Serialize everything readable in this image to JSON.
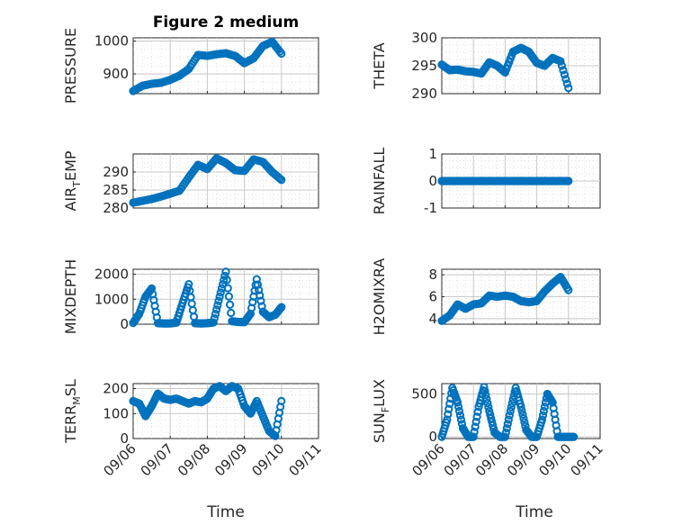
{
  "title": "Figure 2 medium",
  "xlabel": "Time",
  "colors": {
    "marker": "#0072BD",
    "axis": "#262626"
  },
  "x_ticks": [
    "09/06",
    "09/07",
    "09/08",
    "09/09",
    "09/10",
    "09/11"
  ],
  "chart_data": [
    {
      "type": "scatter",
      "ylabel": "PRESSURE",
      "ylabel_parts": [
        "PRESSURE"
      ],
      "ylim": [
        840,
        1010
      ],
      "yticks": [
        900,
        1000
      ],
      "ytick_labels": [
        "900",
        "1000"
      ],
      "xrange": [
        "09/06",
        "09/11"
      ],
      "x": [
        "09/06 00:00",
        "09/06 06:00",
        "09/06 12:00",
        "09/06 18:00",
        "09/07 00:00",
        "09/07 06:00",
        "09/07 12:00",
        "09/07 18:00",
        "09/08 00:00",
        "09/08 06:00",
        "09/08 12:00",
        "09/08 18:00",
        "09/09 00:00",
        "09/09 06:00",
        "09/09 12:00",
        "09/09 18:00",
        "09/10 00:00"
      ],
      "y": [
        848,
        864,
        870,
        873,
        882,
        895,
        915,
        958,
        955,
        960,
        963,
        955,
        933,
        948,
        985,
        998,
        962
      ]
    },
    {
      "type": "scatter",
      "ylabel": "THETA",
      "ylabel_parts": [
        "THETA"
      ],
      "ylim": [
        290,
        300
      ],
      "yticks": [
        290,
        295,
        300
      ],
      "ytick_labels": [
        "290",
        "295",
        "300"
      ],
      "xrange": [
        "09/06",
        "09/11"
      ],
      "x": [
        "09/06 00:00",
        "09/06 06:00",
        "09/06 12:00",
        "09/06 18:00",
        "09/07 00:00",
        "09/07 06:00",
        "09/07 12:00",
        "09/07 18:00",
        "09/08 00:00",
        "09/08 06:00",
        "09/08 12:00",
        "09/08 18:00",
        "09/09 00:00",
        "09/09 06:00",
        "09/09 12:00",
        "09/09 18:00",
        "09/10 00:00"
      ],
      "y": [
        295.2,
        294.2,
        294.3,
        294.0,
        293.9,
        293.6,
        295.6,
        295.0,
        293.8,
        297.5,
        298.2,
        297.5,
        295.5,
        295.0,
        296.4,
        295.8,
        291.0
      ]
    },
    {
      "type": "scatter",
      "ylabel": "AIR_TEMP",
      "ylabel_parts": [
        "AIR",
        "T",
        "EMP"
      ],
      "ylim": [
        280,
        295
      ],
      "yticks": [
        280,
        285,
        290
      ],
      "ytick_labels": [
        "280",
        "285",
        "290"
      ],
      "xrange": [
        "09/06",
        "09/11"
      ],
      "x": [
        "09/06 00:00",
        "09/06 06:00",
        "09/06 12:00",
        "09/06 18:00",
        "09/07 00:00",
        "09/07 06:00",
        "09/07 12:00",
        "09/07 18:00",
        "09/08 00:00",
        "09/08 06:00",
        "09/08 12:00",
        "09/08 18:00",
        "09/09 00:00",
        "09/09 06:00",
        "09/09 12:00",
        "09/09 18:00",
        "09/10 00:00"
      ],
      "y": [
        281.5,
        282.0,
        282.5,
        283.2,
        284.0,
        284.8,
        288.5,
        292.0,
        290.8,
        293.8,
        292.5,
        290.5,
        290.3,
        293.5,
        292.8,
        290.0,
        287.8
      ]
    },
    {
      "type": "scatter",
      "ylabel": "RAINFALL",
      "ylabel_parts": [
        "RAINFALL"
      ],
      "ylim": [
        -1,
        1
      ],
      "yticks": [
        -1,
        0,
        1
      ],
      "ytick_labels": [
        "-1",
        "0",
        "1"
      ],
      "xrange": [
        "09/06",
        "09/11"
      ],
      "x": [
        "09/06 00:00",
        "09/06 06:00",
        "09/06 12:00",
        "09/06 18:00",
        "09/07 00:00",
        "09/07 06:00",
        "09/07 12:00",
        "09/07 18:00",
        "09/08 00:00",
        "09/08 06:00",
        "09/08 12:00",
        "09/08 18:00",
        "09/09 00:00",
        "09/09 06:00",
        "09/09 12:00",
        "09/09 18:00",
        "09/10 00:00"
      ],
      "y": [
        0,
        0,
        0,
        0,
        0,
        0,
        0,
        0,
        0,
        0,
        0,
        0,
        0,
        0,
        0,
        0,
        0
      ]
    },
    {
      "type": "scatter",
      "ylabel": "MIXDEPTH",
      "ylabel_parts": [
        "MIXDEPTH"
      ],
      "ylim": [
        0,
        2200
      ],
      "yticks": [
        0,
        1000,
        2000
      ],
      "ytick_labels": [
        "0",
        "1000",
        "2000"
      ],
      "xrange": [
        "09/06",
        "09/11"
      ],
      "x": [
        "09/06 00:00",
        "09/06 04:00",
        "09/06 08:00",
        "09/06 12:00",
        "09/06 16:00",
        "09/06 20:00",
        "09/07 00:00",
        "09/07 04:00",
        "09/07 08:00",
        "09/07 12:00",
        "09/07 16:00",
        "09/07 20:00",
        "09/08 00:00",
        "09/08 04:00",
        "09/08 08:00",
        "09/08 12:00",
        "09/08 16:00",
        "09/08 20:00",
        "09/09 00:00",
        "09/09 04:00",
        "09/09 08:00",
        "09/09 12:00",
        "09/09 16:00",
        "09/09 20:00",
        "09/10 00:00"
      ],
      "y": [
        50,
        420,
        1100,
        1430,
        40,
        30,
        30,
        60,
        850,
        1600,
        40,
        30,
        40,
        70,
        1100,
        2100,
        120,
        90,
        80,
        420,
        1800,
        500,
        280,
        380,
        680
      ]
    },
    {
      "type": "scatter",
      "ylabel": "H2OMIXRA",
      "ylabel_parts": [
        "H2OMIXRA"
      ],
      "ylim": [
        3.5,
        8.5
      ],
      "yticks": [
        4,
        6,
        8
      ],
      "ytick_labels": [
        "4",
        "6",
        "8"
      ],
      "xrange": [
        "09/06",
        "09/11"
      ],
      "x": [
        "09/06 00:00",
        "09/06 06:00",
        "09/06 12:00",
        "09/06 18:00",
        "09/07 00:00",
        "09/07 06:00",
        "09/07 12:00",
        "09/07 18:00",
        "09/08 00:00",
        "09/08 06:00",
        "09/08 12:00",
        "09/08 18:00",
        "09/09 00:00",
        "09/09 06:00",
        "09/09 12:00",
        "09/09 18:00",
        "09/10 00:00"
      ],
      "y": [
        3.8,
        4.3,
        5.3,
        4.9,
        5.3,
        5.4,
        6.1,
        6.0,
        6.1,
        6.0,
        5.6,
        5.5,
        5.6,
        6.5,
        7.2,
        7.8,
        6.6
      ]
    },
    {
      "type": "scatter",
      "ylabel": "TERR_MSL",
      "ylabel_parts": [
        "TERR",
        "M",
        "SL"
      ],
      "ylim": [
        0,
        220
      ],
      "yticks": [
        0,
        100,
        200
      ],
      "ytick_labels": [
        "0",
        "100",
        "200"
      ],
      "xrange": [
        "09/06",
        "09/11"
      ],
      "x": [
        "09/06 00:00",
        "09/06 04:00",
        "09/06 08:00",
        "09/06 12:00",
        "09/06 16:00",
        "09/06 20:00",
        "09/07 00:00",
        "09/07 04:00",
        "09/07 08:00",
        "09/07 12:00",
        "09/07 16:00",
        "09/07 20:00",
        "09/08 00:00",
        "09/08 04:00",
        "09/08 08:00",
        "09/08 12:00",
        "09/08 16:00",
        "09/08 20:00",
        "09/09 00:00",
        "09/09 04:00",
        "09/09 08:00",
        "09/09 12:00",
        "09/09 16:00",
        "09/09 20:00",
        "09/10 00:00"
      ],
      "y": [
        150,
        140,
        90,
        130,
        180,
        160,
        155,
        160,
        150,
        140,
        150,
        145,
        160,
        200,
        210,
        190,
        210,
        200,
        130,
        100,
        150,
        90,
        30,
        10,
        150
      ]
    },
    {
      "type": "scatter",
      "ylabel": "SUN_FLUX",
      "ylabel_parts": [
        "SUN",
        "F",
        "LUX"
      ],
      "ylim": [
        -20,
        620
      ],
      "yticks": [
        0,
        500
      ],
      "ytick_labels": [
        "0",
        "500"
      ],
      "xrange": [
        "09/06",
        "09/11"
      ],
      "x": [
        "09/06 00:00",
        "09/06 04:00",
        "09/06 08:00",
        "09/06 12:00",
        "09/06 16:00",
        "09/06 20:00",
        "09/07 00:00",
        "09/07 04:00",
        "09/07 08:00",
        "09/07 12:00",
        "09/07 16:00",
        "09/07 20:00",
        "09/08 00:00",
        "09/08 04:00",
        "09/08 08:00",
        "09/08 12:00",
        "09/08 16:00",
        "09/08 20:00",
        "09/09 00:00",
        "09/09 04:00",
        "09/09 08:00",
        "09/09 12:00",
        "09/09 16:00",
        "09/09 20:00",
        "09/10 00:00",
        "09/10 04:00"
      ],
      "y": [
        0,
        200,
        570,
        400,
        100,
        0,
        0,
        350,
        580,
        300,
        50,
        0,
        0,
        300,
        570,
        350,
        80,
        0,
        0,
        200,
        500,
        400,
        0,
        0,
        0,
        0
      ]
    }
  ]
}
